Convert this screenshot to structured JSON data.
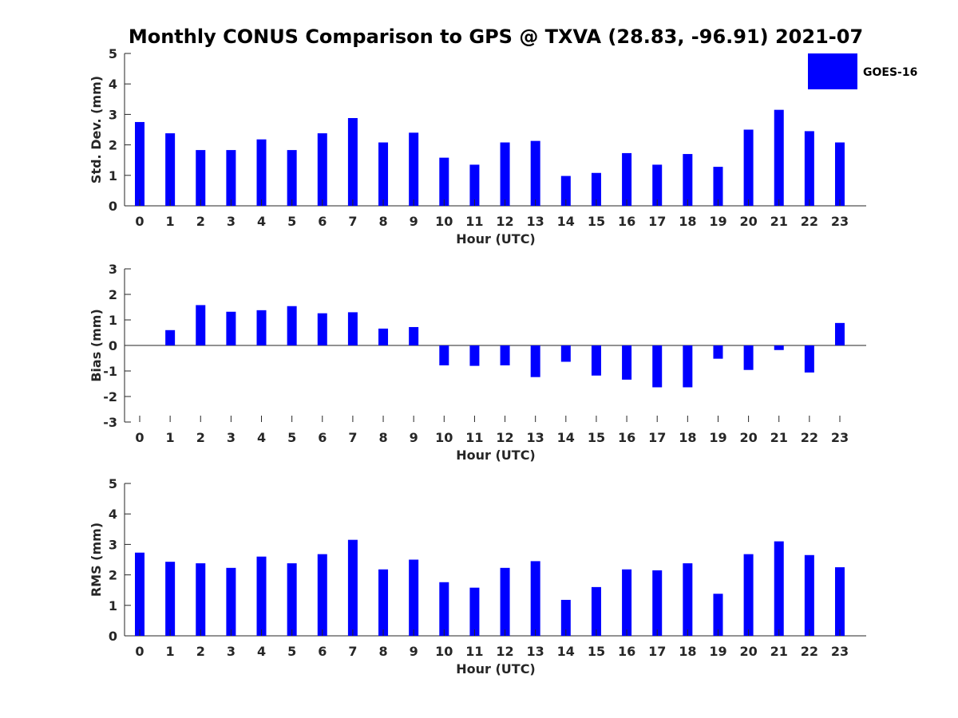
{
  "figure": {
    "title": "Monthly CONUS Comparison to GPS @ TXVA (28.83, -96.91) 2021-07"
  },
  "legend": {
    "label": "GOES-16",
    "color": "#0000ff",
    "placement": "top-right"
  },
  "chart_data": [
    {
      "type": "bar",
      "xlabel": "Hour (UTC)",
      "ylabel": "Std. Dev. (mm)",
      "ylim": [
        0,
        5
      ],
      "yticks": [
        0,
        1,
        2,
        3,
        4,
        5
      ],
      "categories": [
        "0",
        "1",
        "2",
        "3",
        "4",
        "5",
        "6",
        "7",
        "8",
        "9",
        "10",
        "11",
        "12",
        "13",
        "14",
        "15",
        "16",
        "17",
        "18",
        "19",
        "20",
        "21",
        "22",
        "23"
      ],
      "series": [
        {
          "name": "GOES-16",
          "color": "#0000ff",
          "values": [
            2.75,
            2.38,
            1.83,
            1.83,
            2.18,
            1.83,
            2.38,
            2.88,
            2.08,
            2.4,
            1.58,
            1.35,
            2.08,
            2.13,
            0.98,
            1.08,
            1.73,
            1.35,
            1.7,
            1.28,
            2.5,
            3.15,
            2.45,
            2.08
          ]
        }
      ]
    },
    {
      "type": "bar",
      "xlabel": "Hour (UTC)",
      "ylabel": "Bias (mm)",
      "ylim": [
        -3,
        3
      ],
      "yticks": [
        -3,
        -2,
        -1,
        0,
        1,
        2,
        3
      ],
      "categories": [
        "0",
        "1",
        "2",
        "3",
        "4",
        "5",
        "6",
        "7",
        "8",
        "9",
        "10",
        "11",
        "12",
        "13",
        "14",
        "15",
        "16",
        "17",
        "18",
        "19",
        "20",
        "21",
        "22",
        "23"
      ],
      "series": [
        {
          "name": "GOES-16",
          "color": "#0000ff",
          "values": [
            0.0,
            0.6,
            1.58,
            1.32,
            1.38,
            1.54,
            1.26,
            1.3,
            0.66,
            0.72,
            -0.78,
            -0.8,
            -0.78,
            -1.24,
            -0.64,
            -1.18,
            -1.34,
            -1.64,
            -1.64,
            -0.52,
            -0.96,
            -0.18,
            -1.06,
            0.88
          ]
        }
      ]
    },
    {
      "type": "bar",
      "xlabel": "Hour (UTC)",
      "ylabel": "RMS (mm)",
      "ylim": [
        0,
        5
      ],
      "yticks": [
        0,
        1,
        2,
        3,
        4,
        5
      ],
      "categories": [
        "0",
        "1",
        "2",
        "3",
        "4",
        "5",
        "6",
        "7",
        "8",
        "9",
        "10",
        "11",
        "12",
        "13",
        "14",
        "15",
        "16",
        "17",
        "18",
        "19",
        "20",
        "21",
        "22",
        "23"
      ],
      "series": [
        {
          "name": "GOES-16",
          "color": "#0000ff",
          "values": [
            2.73,
            2.43,
            2.38,
            2.23,
            2.6,
            2.38,
            2.68,
            3.15,
            2.18,
            2.5,
            1.76,
            1.58,
            2.23,
            2.45,
            1.18,
            1.6,
            2.18,
            2.15,
            2.38,
            1.38,
            2.68,
            3.1,
            2.65,
            2.25
          ]
        }
      ]
    }
  ]
}
